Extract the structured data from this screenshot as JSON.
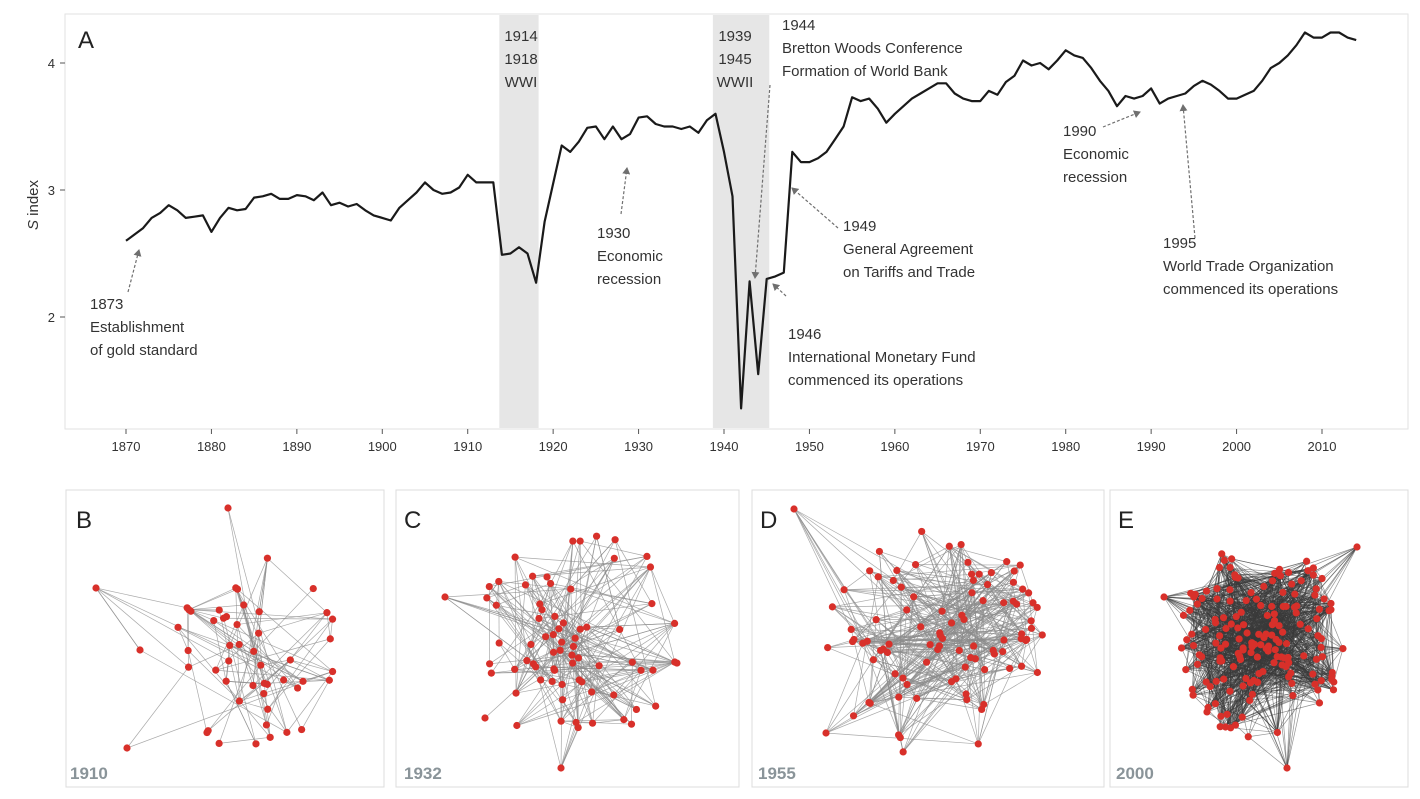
{
  "chart_data": [
    {
      "type": "line",
      "panel_label": "A",
      "ylabel": "S index",
      "ylabel_italic": "S",
      "ylabel_rest": " index",
      "xlim": [
        1862,
        2025
      ],
      "ylim": [
        1.2,
        4.4
      ],
      "xticks": [
        1870,
        1880,
        1890,
        1900,
        1910,
        1920,
        1930,
        1940,
        1950,
        1960,
        1970,
        1980,
        1990,
        2000,
        2010
      ],
      "yticks": [
        2,
        3,
        4
      ],
      "grid": false,
      "shaded_periods": [
        {
          "start": 1914,
          "end": 1918,
          "lines": [
            "1914",
            "1918",
            "WWI"
          ]
        },
        {
          "start": 1939,
          "end": 1945,
          "lines": [
            "1939",
            "1945",
            "WWII"
          ]
        }
      ],
      "series": [
        {
          "x": [
            1870,
            1871,
            1872,
            1873,
            1874,
            1875,
            1876,
            1877,
            1878,
            1879,
            1880,
            1881,
            1882,
            1883,
            1884,
            1885,
            1886,
            1887,
            1888,
            1889,
            1890,
            1891,
            1892,
            1893,
            1894,
            1895,
            1896,
            1897,
            1898,
            1899,
            1900,
            1901,
            1902,
            1903,
            1904,
            1905,
            1906,
            1907,
            1908,
            1909,
            1910,
            1911,
            1912,
            1913,
            1914,
            1915,
            1916,
            1917,
            1918,
            1919,
            1920,
            1921,
            1922,
            1923,
            1924,
            1925,
            1926,
            1927,
            1928,
            1929,
            1930,
            1931,
            1932,
            1933,
            1934,
            1935,
            1936,
            1937,
            1938,
            1939,
            1940,
            1941,
            1942,
            1943,
            1944,
            1945,
            1946,
            1947,
            1948,
            1949,
            1950,
            1951,
            1952,
            1953,
            1954,
            1955,
            1956,
            1957,
            1958,
            1959,
            1960,
            1961,
            1962,
            1963,
            1964,
            1965,
            1966,
            1967,
            1968,
            1969,
            1970,
            1971,
            1972,
            1973,
            1974,
            1975,
            1976,
            1977,
            1978,
            1979,
            1980,
            1981,
            1982,
            1983,
            1984,
            1985,
            1986,
            1987,
            1988,
            1989,
            1990,
            1991,
            1992,
            1993,
            1994,
            1995,
            1996,
            1997,
            1998,
            1999,
            2000,
            2001,
            2002,
            2003,
            2004,
            2005,
            2006,
            2007,
            2008,
            2009,
            2010,
            2011,
            2012,
            2013,
            2014
          ],
          "y": [
            2.6,
            2.65,
            2.7,
            2.78,
            2.82,
            2.88,
            2.84,
            2.78,
            2.79,
            2.8,
            2.67,
            2.78,
            2.86,
            2.84,
            2.85,
            2.94,
            2.95,
            2.97,
            2.93,
            2.93,
            2.96,
            2.95,
            2.92,
            2.98,
            2.88,
            2.9,
            2.87,
            2.89,
            2.84,
            2.8,
            2.78,
            2.76,
            2.86,
            2.92,
            2.98,
            3.06,
            3.0,
            2.97,
            2.98,
            3.02,
            3.12,
            3.06,
            3.06,
            3.06,
            2.49,
            2.5,
            2.55,
            2.5,
            2.27,
            2.75,
            3.05,
            3.35,
            3.3,
            3.38,
            3.49,
            3.5,
            3.4,
            3.5,
            3.4,
            3.44,
            3.57,
            3.58,
            3.52,
            3.5,
            3.5,
            3.48,
            3.5,
            3.45,
            3.55,
            3.6,
            3.3,
            2.95,
            1.28,
            2.28,
            1.55,
            2.3,
            2.32,
            2.35,
            3.3,
            3.22,
            3.22,
            3.25,
            3.3,
            3.4,
            3.5,
            3.73,
            3.7,
            3.72,
            3.64,
            3.53,
            3.6,
            3.66,
            3.72,
            3.76,
            3.8,
            3.84,
            3.84,
            3.76,
            3.72,
            3.7,
            3.7,
            3.78,
            3.75,
            3.85,
            3.9,
            4.02,
            3.98,
            4.0,
            3.95,
            4.02,
            4.1,
            4.06,
            4.04,
            3.96,
            3.86,
            3.78,
            3.66,
            3.74,
            3.72,
            3.74,
            3.8,
            3.68,
            3.72,
            3.74,
            3.76,
            3.82,
            3.86,
            3.83,
            3.78,
            3.72,
            3.72,
            3.75,
            3.78,
            3.86,
            3.96,
            4.0,
            4.06,
            4.14,
            4.24,
            4.2,
            4.2,
            4.24,
            4.24,
            4.2,
            4.18
          ]
        }
      ],
      "annotations": [
        {
          "lines": [
            "1873",
            "Establishment",
            "of gold standard"
          ]
        },
        {
          "lines": [
            "1930",
            "Economic",
            "recession"
          ]
        },
        {
          "lines": [
            "1944",
            "Bretton Woods Conference",
            "Formation of World Bank"
          ]
        },
        {
          "lines": [
            "1946",
            "International Monetary Fund",
            "commenced its operations"
          ]
        },
        {
          "lines": [
            "1949",
            "General Agreement",
            "on Tariffs and Trade"
          ]
        },
        {
          "lines": [
            "1990",
            "Economic",
            "recession"
          ]
        },
        {
          "lines": [
            "1995",
            "World Trade Organization",
            "commenced its operations"
          ]
        }
      ]
    },
    {
      "type": "network",
      "panel_label": "B",
      "year": "1910"
    },
    {
      "type": "network",
      "panel_label": "C",
      "year": "1932"
    },
    {
      "type": "network",
      "panel_label": "D",
      "year": "1955"
    },
    {
      "type": "network",
      "panel_label": "E",
      "year": "2000"
    }
  ],
  "colors": {
    "line": "#1a1a1a",
    "shade": "#e6e6e6",
    "node": "#d8302a",
    "edge": "#8c8c8c",
    "frame": "#dcdcdc",
    "year_label": "#8a9499",
    "arrow": "#6f6f6f"
  }
}
